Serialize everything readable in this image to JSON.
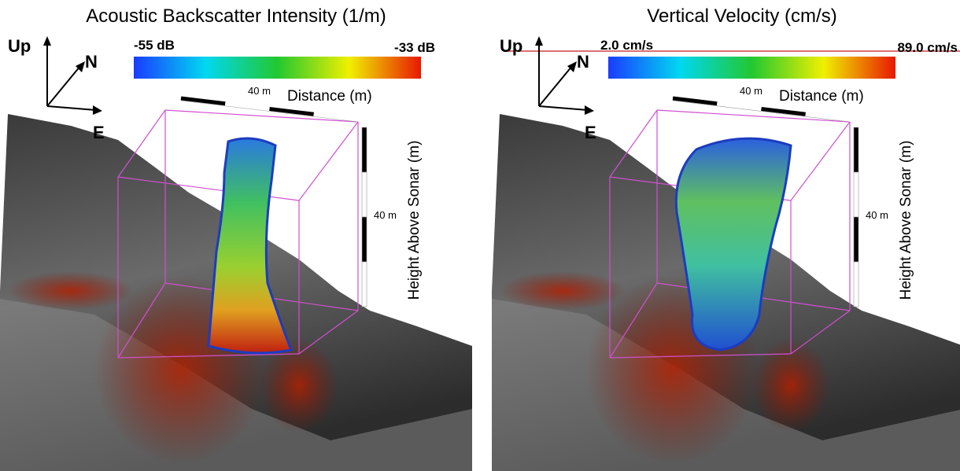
{
  "panels": [
    {
      "title": "Acoustic Backscatter Intensity (1/m)",
      "compass": {
        "up": "Up",
        "north": "N",
        "east": "E"
      },
      "colorbar": {
        "min_label": "-55 dB",
        "max_label": "-33 dB"
      },
      "distance_scale": {
        "label": "40 m",
        "axis_label": "Distance (m)"
      },
      "height_scale": {
        "label": "40 m",
        "axis_label": "Height Above Sonar (m)"
      }
    },
    {
      "title": "Vertical Velocity (cm/s)",
      "compass": {
        "up": "Up",
        "north": "N",
        "east": "E"
      },
      "colorbar": {
        "min_label": "2.0 cm/s",
        "max_label": "89.0 cm/s"
      },
      "distance_scale": {
        "label": "40 m",
        "axis_label": "Distance (m)"
      },
      "height_scale": {
        "label": "40 m",
        "axis_label": "Height Above Sonar (m)"
      }
    }
  ]
}
